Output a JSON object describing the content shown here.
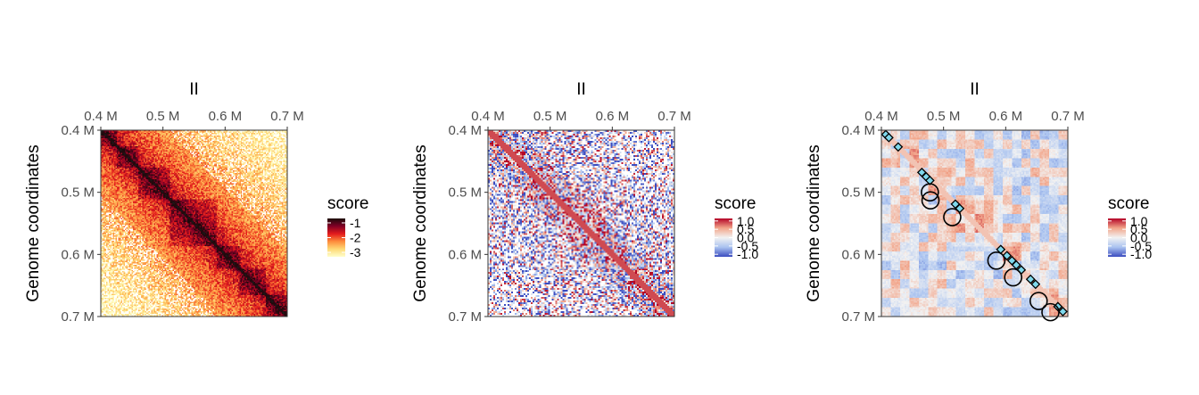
{
  "chart_data": [
    {
      "type": "heatmap",
      "title": "II",
      "ylabel": "Genome coordinates",
      "x_ticks": [
        "0.4 M",
        "0.5 M",
        "0.6 M",
        "0.7 M"
      ],
      "y_ticks": [
        "0.4 M",
        "0.5 M",
        "0.6 M",
        "0.7 M"
      ],
      "x_tick_values": [
        400000,
        500000,
        600000,
        700000
      ],
      "y_tick_values": [
        400000,
        500000,
        600000,
        700000
      ],
      "xlim": [
        400000,
        700000
      ],
      "ylim": [
        400000,
        700000
      ],
      "legend": {
        "title": "score",
        "labels": [
          "-1",
          "-2",
          "-3"
        ],
        "values": [
          -1,
          -2,
          -3
        ],
        "range": [
          -3.3,
          -0.7
        ],
        "colors": [
          "#ffffcc",
          "#fed976",
          "#fd8d3c",
          "#e31a1c",
          "#800026",
          "#1a0a0a"
        ]
      }
    },
    {
      "type": "heatmap",
      "title": "II",
      "ylabel": "Genome coordinates",
      "x_ticks": [
        "0.4 M",
        "0.5 M",
        "0.6 M",
        "0.7 M"
      ],
      "y_ticks": [
        "0.4 M",
        "0.5 M",
        "0.6 M",
        "0.7 M"
      ],
      "x_tick_values": [
        400000,
        500000,
        600000,
        700000
      ],
      "y_tick_values": [
        400000,
        500000,
        600000,
        700000
      ],
      "xlim": [
        400000,
        700000
      ],
      "ylim": [
        400000,
        700000
      ],
      "legend": {
        "title": "score",
        "labels": [
          "1.0",
          "0.5",
          "0.0",
          "-0.5",
          "-1.0"
        ],
        "values": [
          1.0,
          0.5,
          0.0,
          -0.5,
          -1.0
        ],
        "range": [
          -1.15,
          1.15
        ],
        "colors": [
          "#3b4cc0",
          "#aac3f0",
          "#f2f2f2",
          "#f2a58a",
          "#b40426"
        ]
      }
    },
    {
      "type": "heatmap",
      "title": "II",
      "ylabel": "Genome coordinates",
      "x_ticks": [
        "0.4 M",
        "0.5 M",
        "0.6 M",
        "0.7 M"
      ],
      "y_ticks": [
        "0.4 M",
        "0.5 M",
        "0.6 M",
        "0.7 M"
      ],
      "x_tick_values": [
        400000,
        500000,
        600000,
        700000
      ],
      "y_tick_values": [
        400000,
        500000,
        600000,
        700000
      ],
      "xlim": [
        400000,
        700000
      ],
      "ylim": [
        400000,
        700000
      ],
      "legend": {
        "title": "score",
        "labels": [
          "1.0",
          "0.5",
          "0.0",
          "-0.5",
          "-1.0"
        ],
        "values": [
          1.0,
          0.5,
          0.0,
          -0.5,
          -1.0
        ],
        "range": [
          -1.15,
          1.15
        ],
        "colors": [
          "#3b4cc0",
          "#aac3f0",
          "#f2f2f2",
          "#f2a58a",
          "#b40426"
        ]
      },
      "diamond_marker_color": "#7fd8ec",
      "diamonds": [
        [
          407000,
          407000
        ],
        [
          412000,
          412000
        ],
        [
          427000,
          427000
        ],
        [
          465000,
          468000
        ],
        [
          472000,
          475000
        ],
        [
          478000,
          481000
        ],
        [
          519000,
          519000
        ],
        [
          526000,
          526000
        ],
        [
          592000,
          592000
        ],
        [
          602000,
          602000
        ],
        [
          610000,
          610000
        ],
        [
          617000,
          617000
        ],
        [
          625000,
          625000
        ],
        [
          640000,
          640000
        ],
        [
          648000,
          648000
        ],
        [
          684000,
          684000
        ],
        [
          692000,
          692000
        ]
      ],
      "circles": [
        [
          478000,
          500000
        ],
        [
          479000,
          513000
        ],
        [
          514000,
          540000
        ],
        [
          585000,
          610000
        ],
        [
          612000,
          637000
        ],
        [
          653000,
          675000
        ],
        [
          672000,
          693000
        ]
      ]
    }
  ]
}
